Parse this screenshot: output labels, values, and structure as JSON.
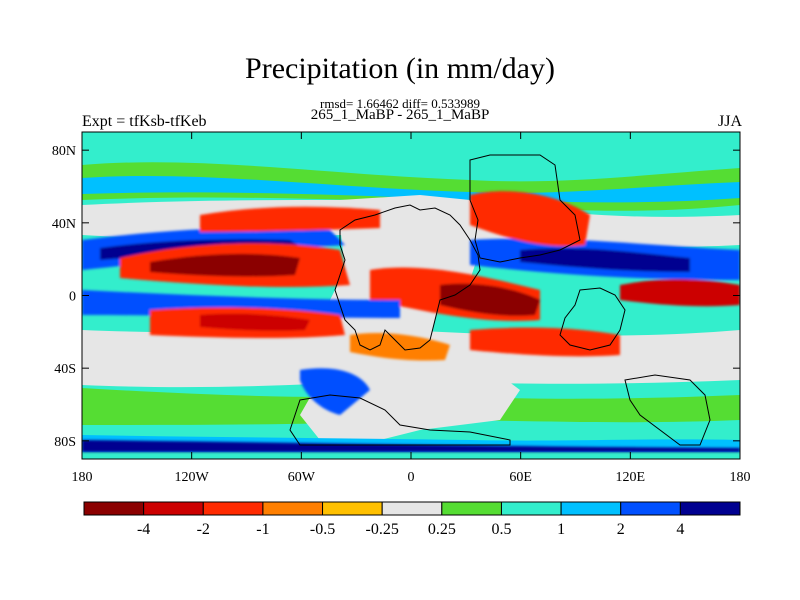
{
  "title": "Precipitation (in mm/day)",
  "stats_line": "rmsd= 1.66462 diff= 0.533989",
  "comparison_line": "265_1_MaBP - 265_1_MaBP",
  "left_label": "Expt = tfKsb-tfKeb",
  "right_label": "JJA",
  "y_axis": {
    "ticks": [
      {
        "label": "80N",
        "lat": 80
      },
      {
        "label": "40N",
        "lat": 40
      },
      {
        "label": "0",
        "lat": 0
      },
      {
        "label": "40S",
        "lat": -40
      },
      {
        "label": "80S",
        "lat": -80
      }
    ],
    "range": [
      -90,
      90
    ]
  },
  "x_axis": {
    "ticks": [
      {
        "label": "180",
        "lon": -180
      },
      {
        "label": "120W",
        "lon": -120
      },
      {
        "label": "60W",
        "lon": -60
      },
      {
        "label": "0",
        "lon": 0
      },
      {
        "label": "60E",
        "lon": 60
      },
      {
        "label": "120E",
        "lon": 120
      },
      {
        "label": "180",
        "lon": 180
      }
    ],
    "range": [
      -180,
      180
    ]
  },
  "colorbar": {
    "colors": [
      "#8b0000",
      "#cc0000",
      "#ff2a00",
      "#ff7f00",
      "#ffc000",
      "#e6e6e6",
      "#55dd33",
      "#33eecc",
      "#00c0ff",
      "#0050ff",
      "#000090"
    ],
    "labels": [
      "-4",
      "-2",
      "-1",
      "-0.5",
      "-0.25",
      "0.25",
      "0.5",
      "1",
      "2",
      "4"
    ]
  },
  "colors": {
    "ocean_background": "#33eecc",
    "neutral": "#e6e6e6"
  }
}
